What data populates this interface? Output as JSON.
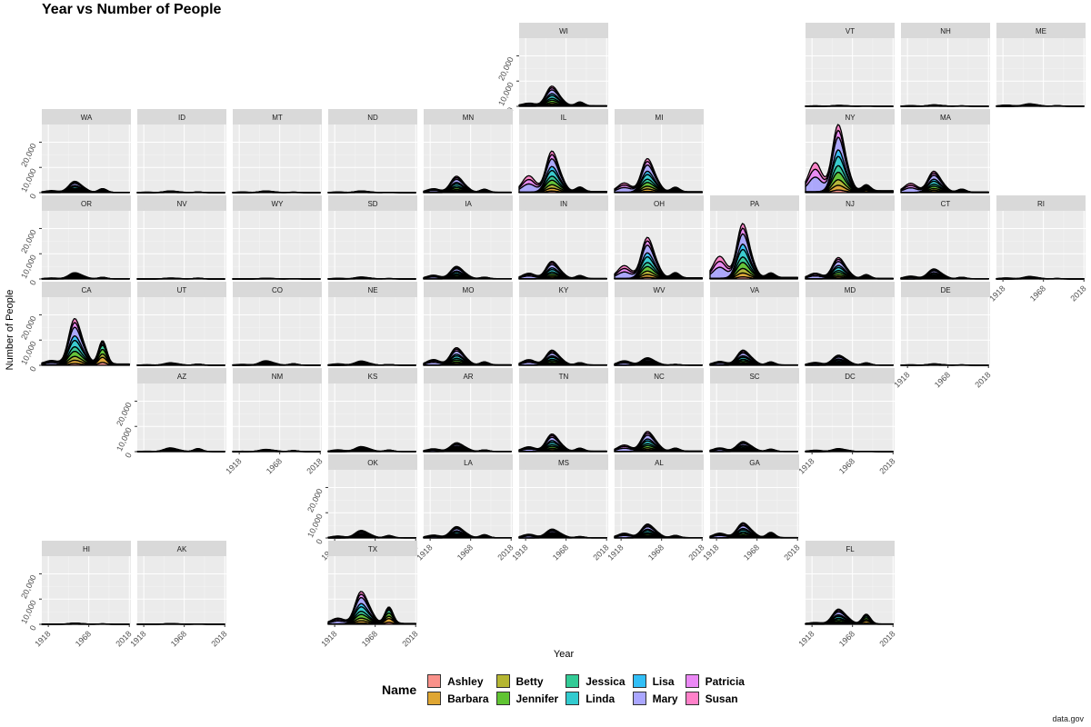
{
  "chart_title": "Year vs Number of People",
  "source_caption": "data.gov",
  "legend_title": "Name",
  "chart_data": {
    "type": "area",
    "stacked": true,
    "facet": "state-grid",
    "title": "Year vs Number of People",
    "xlabel": "Year",
    "ylabel": "Number of People",
    "xlim": [
      1910,
      2020
    ],
    "ylim": [
      0,
      27000
    ],
    "x_ticks": [
      1918,
      1968,
      2018
    ],
    "y_ticks": [
      0,
      10000,
      20000
    ],
    "x_tick_labels": [
      "1918",
      "1968",
      "2018"
    ],
    "y_tick_labels": [
      "0",
      "10,000",
      "20,000"
    ],
    "grid": true,
    "legend_position": "bottom",
    "names": [
      {
        "name": "Ashley",
        "color": "#F8766D"
      },
      {
        "name": "Barbara",
        "color": "#D89000"
      },
      {
        "name": "Betty",
        "color": "#A3A500"
      },
      {
        "name": "Jennifer",
        "color": "#39B600"
      },
      {
        "name": "Jessica",
        "color": "#00BF7D"
      },
      {
        "name": "Linda",
        "color": "#00BFC4"
      },
      {
        "name": "Lisa",
        "color": "#00B0F6"
      },
      {
        "name": "Mary",
        "color": "#9590FF"
      },
      {
        "name": "Patricia",
        "color": "#E76BF3"
      },
      {
        "name": "Susan",
        "color": "#FF62BC"
      }
    ],
    "states": [
      {
        "state": "WI",
        "peak": 8000,
        "recent": 2500,
        "early": 1500,
        "baby_boom": 5000
      },
      {
        "state": "VT",
        "peak": 400,
        "recent": 200,
        "early": 300,
        "baby_boom": 400
      },
      {
        "state": "NH",
        "peak": 600,
        "recent": 300,
        "early": 400,
        "baby_boom": 600
      },
      {
        "state": "ME",
        "peak": 1000,
        "recent": 400,
        "early": 700,
        "baby_boom": 900
      },
      {
        "state": "WA",
        "peak": 4500,
        "recent": 2500,
        "early": 1000,
        "baby_boom": 3500
      },
      {
        "state": "ID",
        "peak": 700,
        "recent": 400,
        "early": 300,
        "baby_boom": 600
      },
      {
        "state": "MT",
        "peak": 700,
        "recent": 300,
        "early": 400,
        "baby_boom": 600
      },
      {
        "state": "ND",
        "peak": 700,
        "recent": 200,
        "early": 400,
        "baby_boom": 600
      },
      {
        "state": "MN",
        "peak": 6500,
        "recent": 2000,
        "early": 2000,
        "baby_boom": 4500
      },
      {
        "state": "IL",
        "peak": 16500,
        "recent": 3000,
        "early": 9000,
        "baby_boom": 11000
      },
      {
        "state": "MI",
        "peak": 13500,
        "recent": 3000,
        "early": 5000,
        "baby_boom": 9000
      },
      {
        "state": "NY",
        "peak": 27000,
        "recent": 4000,
        "early": 16000,
        "baby_boom": 15000
      },
      {
        "state": "MA",
        "peak": 8500,
        "recent": 2000,
        "early": 5000,
        "baby_boom": 6000
      },
      {
        "state": "OR",
        "peak": 2500,
        "recent": 1000,
        "early": 500,
        "baby_boom": 2000
      },
      {
        "state": "NV",
        "peak": 400,
        "recent": 600,
        "early": 100,
        "baby_boom": 400
      },
      {
        "state": "WY",
        "peak": 300,
        "recent": 200,
        "early": 100,
        "baby_boom": 300
      },
      {
        "state": "SD",
        "peak": 800,
        "recent": 300,
        "early": 400,
        "baby_boom": 700
      },
      {
        "state": "IA",
        "peak": 5000,
        "recent": 1000,
        "early": 2000,
        "baby_boom": 3500
      },
      {
        "state": "IN",
        "peak": 7000,
        "recent": 2000,
        "early": 3000,
        "baby_boom": 5000
      },
      {
        "state": "OH",
        "peak": 16500,
        "recent": 3500,
        "early": 7000,
        "baby_boom": 11000
      },
      {
        "state": "PA",
        "peak": 22000,
        "recent": 3000,
        "early": 12000,
        "baby_boom": 12000
      },
      {
        "state": "NJ",
        "peak": 8500,
        "recent": 2500,
        "early": 3000,
        "baby_boom": 6000
      },
      {
        "state": "CT",
        "peak": 4000,
        "recent": 1000,
        "early": 1500,
        "baby_boom": 3000
      },
      {
        "state": "RI",
        "peak": 1000,
        "recent": 300,
        "early": 600,
        "baby_boom": 900
      },
      {
        "state": "CA",
        "peak": 18500,
        "recent": 15500,
        "early": 2000,
        "baby_boom": 14000
      },
      {
        "state": "UT",
        "peak": 1000,
        "recent": 800,
        "early": 300,
        "baby_boom": 900
      },
      {
        "state": "CO",
        "peak": 1800,
        "recent": 1000,
        "early": 500,
        "baby_boom": 1500
      },
      {
        "state": "NE",
        "peak": 1700,
        "recent": 500,
        "early": 800,
        "baby_boom": 1300
      },
      {
        "state": "MO",
        "peak": 7000,
        "recent": 2000,
        "early": 3000,
        "baby_boom": 5000
      },
      {
        "state": "KY",
        "peak": 6000,
        "recent": 1500,
        "early": 3000,
        "baby_boom": 4500
      },
      {
        "state": "WV",
        "peak": 3000,
        "recent": 500,
        "early": 2500,
        "baby_boom": 2000
      },
      {
        "state": "VA",
        "peak": 6000,
        "recent": 2000,
        "early": 2000,
        "baby_boom": 5000
      },
      {
        "state": "MD",
        "peak": 4000,
        "recent": 1500,
        "early": 1500,
        "baby_boom": 3500
      },
      {
        "state": "DE",
        "peak": 600,
        "recent": 300,
        "early": 300,
        "baby_boom": 500
      },
      {
        "state": "AZ",
        "peak": 1500,
        "recent": 2000,
        "early": 200,
        "baby_boom": 1200
      },
      {
        "state": "NM",
        "peak": 900,
        "recent": 700,
        "early": 200,
        "baby_boom": 900
      },
      {
        "state": "KS",
        "peak": 2000,
        "recent": 1000,
        "early": 1000,
        "baby_boom": 1800
      },
      {
        "state": "AR",
        "peak": 3500,
        "recent": 1000,
        "early": 1500,
        "baby_boom": 3000
      },
      {
        "state": "TN",
        "peak": 7000,
        "recent": 2000,
        "early": 2500,
        "baby_boom": 5000
      },
      {
        "state": "NC",
        "peak": 8000,
        "recent": 2000,
        "early": 3500,
        "baby_boom": 6500
      },
      {
        "state": "SC",
        "peak": 4000,
        "recent": 1500,
        "early": 2000,
        "baby_boom": 3500
      },
      {
        "state": "DC",
        "peak": 1200,
        "recent": 200,
        "early": 800,
        "baby_boom": 1000
      },
      {
        "state": "OK",
        "peak": 3000,
        "recent": 1500,
        "early": 1000,
        "baby_boom": 2500
      },
      {
        "state": "LA",
        "peak": 4500,
        "recent": 2000,
        "early": 1500,
        "baby_boom": 3500
      },
      {
        "state": "MS",
        "peak": 3500,
        "recent": 800,
        "early": 2000,
        "baby_boom": 3000
      },
      {
        "state": "AL",
        "peak": 5500,
        "recent": 1500,
        "early": 2500,
        "baby_boom": 4500
      },
      {
        "state": "GA",
        "peak": 6000,
        "recent": 3500,
        "early": 2500,
        "baby_boom": 5000
      },
      {
        "state": "HI",
        "peak": 500,
        "recent": 300,
        "early": 100,
        "baby_boom": 400
      },
      {
        "state": "AK",
        "peak": 300,
        "recent": 200,
        "early": 100,
        "baby_boom": 300
      },
      {
        "state": "TX",
        "peak": 13000,
        "recent": 11000,
        "early": 3000,
        "baby_boom": 11000
      },
      {
        "state": "FL",
        "peak": 6000,
        "recent": 6500,
        "early": 800,
        "baby_boom": 5000
      }
    ]
  }
}
